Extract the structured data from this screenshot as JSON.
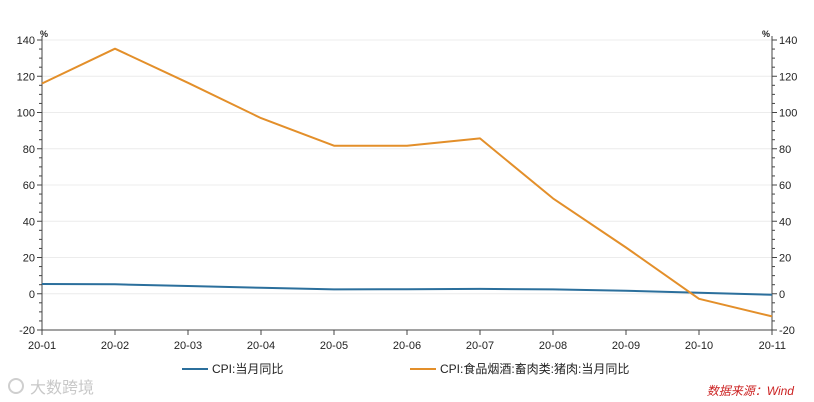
{
  "chart_data": {
    "type": "line",
    "categories": [
      "20-01",
      "20-02",
      "20-03",
      "20-04",
      "20-05",
      "20-06",
      "20-07",
      "20-08",
      "20-09",
      "20-10",
      "20-11"
    ],
    "series": [
      {
        "name": "CPI:当月同比",
        "color": "#2b6f9c",
        "axis": "left",
        "values": [
          5.4,
          5.2,
          4.3,
          3.3,
          2.4,
          2.5,
          2.7,
          2.4,
          1.7,
          0.5,
          -0.5
        ]
      },
      {
        "name": "CPI:食品烟酒:畜肉类:猪肉:当月同比",
        "color": "#e38f2a",
        "axis": "right",
        "values": [
          116.0,
          135.2,
          116.4,
          96.9,
          81.7,
          81.6,
          85.7,
          52.6,
          25.5,
          -2.8,
          -12.5
        ]
      }
    ],
    "y_left": {
      "min": -20,
      "max": 140,
      "ticks": [
        -20,
        0,
        20,
        40,
        60,
        80,
        100,
        120,
        140
      ],
      "unit": "%"
    },
    "y_right": {
      "min": -20,
      "max": 140,
      "ticks": [
        -20,
        0,
        20,
        40,
        60,
        80,
        100,
        120,
        140
      ],
      "unit": "%"
    },
    "grid": true,
    "legend": "bottom"
  },
  "watermark_text": "大数跨境",
  "source_text": "数据来源：Wind"
}
